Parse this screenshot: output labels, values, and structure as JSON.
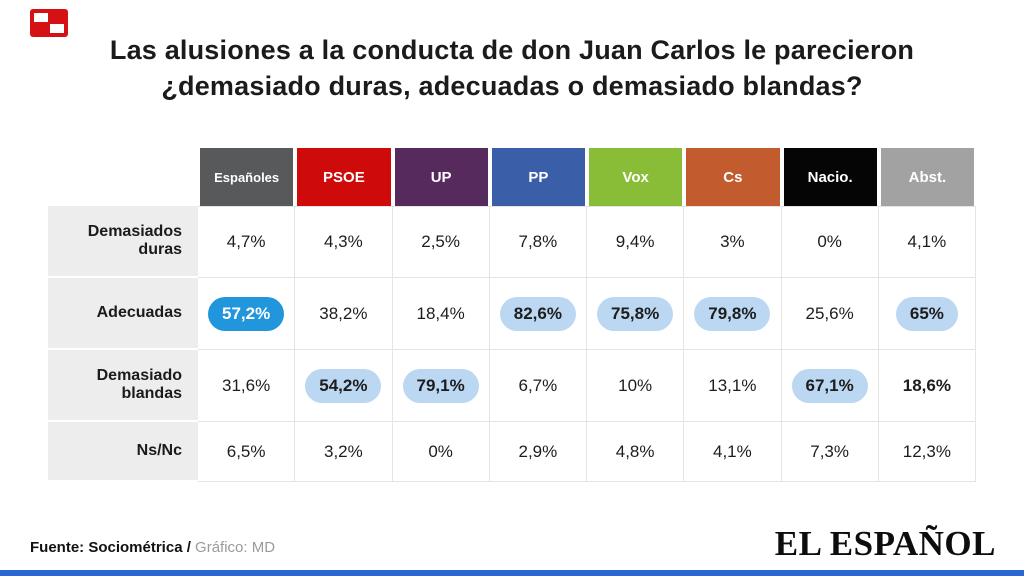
{
  "title": {
    "line1": "Las alusiones a la conducta de don Juan Carlos le parecieron",
    "line2": "¿demasiado duras, adecuadas o demasiado blandas?"
  },
  "chart_data": {
    "type": "table",
    "title": "Las alusiones a la conducta de don Juan Carlos le parecieron ¿demasiado duras, adecuadas o demasiado blandas?",
    "columns": [
      {
        "label": "Españoles",
        "color": "#58595b"
      },
      {
        "label": "PSOE",
        "color": "#ce0a0a"
      },
      {
        "label": "UP",
        "color": "#572a5e"
      },
      {
        "label": "PP",
        "color": "#3a5fa8"
      },
      {
        "label": "Vox",
        "color": "#8abd37"
      },
      {
        "label": "Cs",
        "color": "#c25b2e"
      },
      {
        "label": "Nacio.",
        "color": "#050505"
      },
      {
        "label": "Abst.",
        "color": "#a2a2a2"
      }
    ],
    "rows": [
      {
        "label": "Demasiados duras",
        "cells": [
          {
            "text": "4,7%",
            "style": "plain"
          },
          {
            "text": "4,3%",
            "style": "plain"
          },
          {
            "text": "2,5%",
            "style": "plain"
          },
          {
            "text": "7,8%",
            "style": "plain"
          },
          {
            "text": "9,4%",
            "style": "plain"
          },
          {
            "text": "3%",
            "style": "plain"
          },
          {
            "text": "0%",
            "style": "plain"
          },
          {
            "text": "4,1%",
            "style": "plain"
          }
        ]
      },
      {
        "label": "Adecuadas",
        "cells": [
          {
            "text": "57,2%",
            "style": "pill_strong"
          },
          {
            "text": "38,2%",
            "style": "plain"
          },
          {
            "text": "18,4%",
            "style": "plain"
          },
          {
            "text": "82,6%",
            "style": "pill"
          },
          {
            "text": "75,8%",
            "style": "pill"
          },
          {
            "text": "79,8%",
            "style": "pill"
          },
          {
            "text": "25,6%",
            "style": "plain"
          },
          {
            "text": "65%",
            "style": "pill"
          }
        ]
      },
      {
        "label": "Demasiado blandas",
        "cells": [
          {
            "text": "31,6%",
            "style": "plain"
          },
          {
            "text": "54,2%",
            "style": "pill"
          },
          {
            "text": "79,1%",
            "style": "pill"
          },
          {
            "text": "6,7%",
            "style": "plain"
          },
          {
            "text": "10%",
            "style": "plain"
          },
          {
            "text": "13,1%",
            "style": "plain"
          },
          {
            "text": "67,1%",
            "style": "pill"
          },
          {
            "text": "18,6%",
            "style": "bold"
          }
        ]
      },
      {
        "label": "Ns/Nc",
        "cells": [
          {
            "text": "6,5%",
            "style": "plain"
          },
          {
            "text": "3,2%",
            "style": "plain"
          },
          {
            "text": "0%",
            "style": "plain"
          },
          {
            "text": "2,9%",
            "style": "plain"
          },
          {
            "text": "4,8%",
            "style": "plain"
          },
          {
            "text": "4,1%",
            "style": "plain"
          },
          {
            "text": "7,3%",
            "style": "plain"
          },
          {
            "text": "12,3%",
            "style": "plain"
          }
        ]
      }
    ],
    "highlight_colors": {
      "pill": "#bcd7f2",
      "pill_strong": "#2196dc"
    },
    "layout": {
      "row_header_bg": "#ededed",
      "grid_line": "#e4e4e4"
    }
  },
  "footer": {
    "source": "Fuente: Sociométrica /",
    "credit": " Gráfico: MD",
    "brand": "EL ESPAÑOL"
  },
  "colors": {
    "bottom_bar": "#2a66d4",
    "logo_red": "#d41216"
  }
}
